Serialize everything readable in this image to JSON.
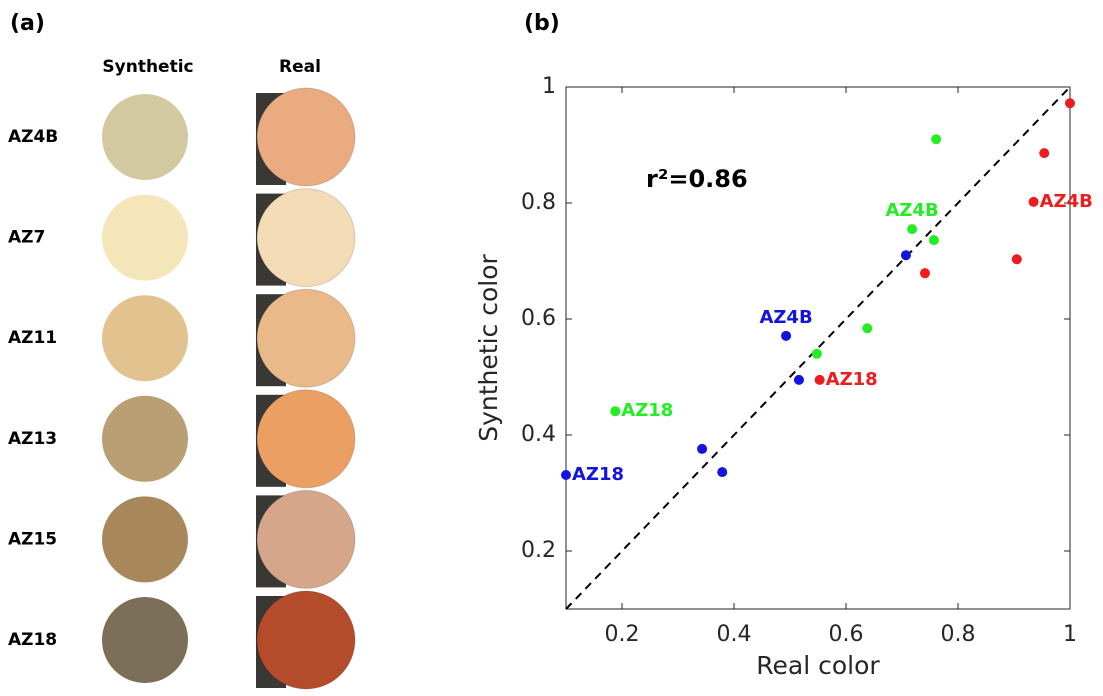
{
  "panel_a": {
    "label": "(a)",
    "column_headers": [
      "Synthetic",
      "Real"
    ],
    "rows": [
      {
        "name": "AZ4B",
        "synthetic_color": "#d3c9a1",
        "real_color": "#e9ab7f"
      },
      {
        "name": "AZ7",
        "synthetic_color": "#f5e6b9",
        "real_color": "#f3dcb5"
      },
      {
        "name": "AZ11",
        "synthetic_color": "#e2c38f",
        "real_color": "#eab989"
      },
      {
        "name": "AZ13",
        "synthetic_color": "#b99f73",
        "real_color": "#eb9f63"
      },
      {
        "name": "AZ15",
        "synthetic_color": "#a8885b",
        "real_color": "#d5a689"
      },
      {
        "name": "AZ18",
        "synthetic_color": "#7b6f59",
        "real_color": "#b44b2b"
      }
    ]
  },
  "chart_data": {
    "type": "scatter",
    "panel_label": "(b)",
    "annotation": "r²=0.86",
    "x_label": "Real color",
    "y_label": "Synthetic color",
    "xlim": [
      0.1,
      1
    ],
    "ylim": [
      0.1,
      1
    ],
    "xticks": [
      0.2,
      0.4,
      0.6,
      0.8,
      1
    ],
    "yticks": [
      0.2,
      0.4,
      0.6,
      0.8,
      1
    ],
    "series": [
      {
        "color": "#ee1c1c",
        "x": [
          1.0,
          0.954,
          0.935,
          0.905,
          0.741,
          0.553
        ],
        "values": [
          0.972,
          0.886,
          0.802,
          0.703,
          0.679,
          0.495
        ],
        "point_labels": [
          null,
          null,
          "AZ4B",
          null,
          null,
          "AZ18"
        ]
      },
      {
        "color": "#22ee22",
        "x": [
          0.761,
          0.718,
          0.757,
          0.638,
          0.548,
          0.188
        ],
        "values": [
          0.91,
          0.755,
          0.736,
          0.584,
          0.54,
          0.441
        ],
        "point_labels": [
          null,
          "AZ4B",
          null,
          null,
          null,
          "AZ18"
        ]
      },
      {
        "color": "#1414e0",
        "x": [
          0.707,
          0.493,
          0.516,
          0.343,
          0.379,
          0.1
        ],
        "values": [
          0.71,
          0.571,
          0.495,
          0.376,
          0.336,
          0.331
        ],
        "point_labels": [
          null,
          "AZ4B",
          null,
          null,
          null,
          "AZ18"
        ]
      }
    ]
  }
}
